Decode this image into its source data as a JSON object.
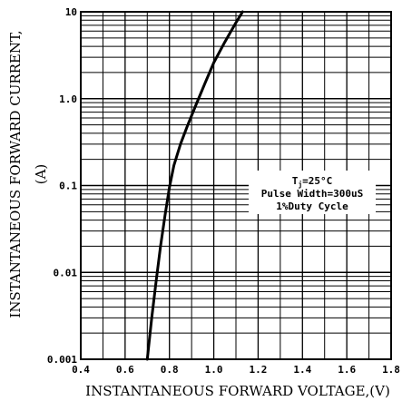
{
  "chart_data": {
    "type": "line",
    "xlabel": "INSTANTANEOUS  FORWARD  VOLTAGE,(V)",
    "ylabel_line1": "INSTANTANEOUS  FORWARD  CURRENT,",
    "ylabel_line2": "(A)",
    "x_scale": "linear",
    "y_scale": "log",
    "xlim": [
      0.4,
      1.8
    ],
    "ylim": [
      0.001,
      10
    ],
    "x_ticks": [
      "0.4",
      "0.6",
      "0.8",
      "1.0",
      "1.2",
      "1.4",
      "1.6",
      "1.8"
    ],
    "y_ticks": [
      "0.001",
      "0.01",
      "0.1",
      "1.0",
      "10"
    ],
    "grid": true,
    "annotation": {
      "line1_main": "T",
      "line1_sub": "j",
      "line1_rest": "=25°C",
      "line2": "Pulse Width=300uS",
      "line3": "1%Duty Cycle"
    },
    "series": [
      {
        "x": [
          0.7,
          0.72,
          0.74,
          0.76,
          0.78,
          0.8,
          0.82,
          0.85,
          0.88,
          0.92,
          0.96,
          1.0,
          1.05,
          1.1,
          1.13
        ],
        "y": [
          0.001,
          0.003,
          0.008,
          0.02,
          0.045,
          0.095,
          0.17,
          0.3,
          0.48,
          0.85,
          1.5,
          2.6,
          4.5,
          7.5,
          10
        ]
      }
    ]
  }
}
